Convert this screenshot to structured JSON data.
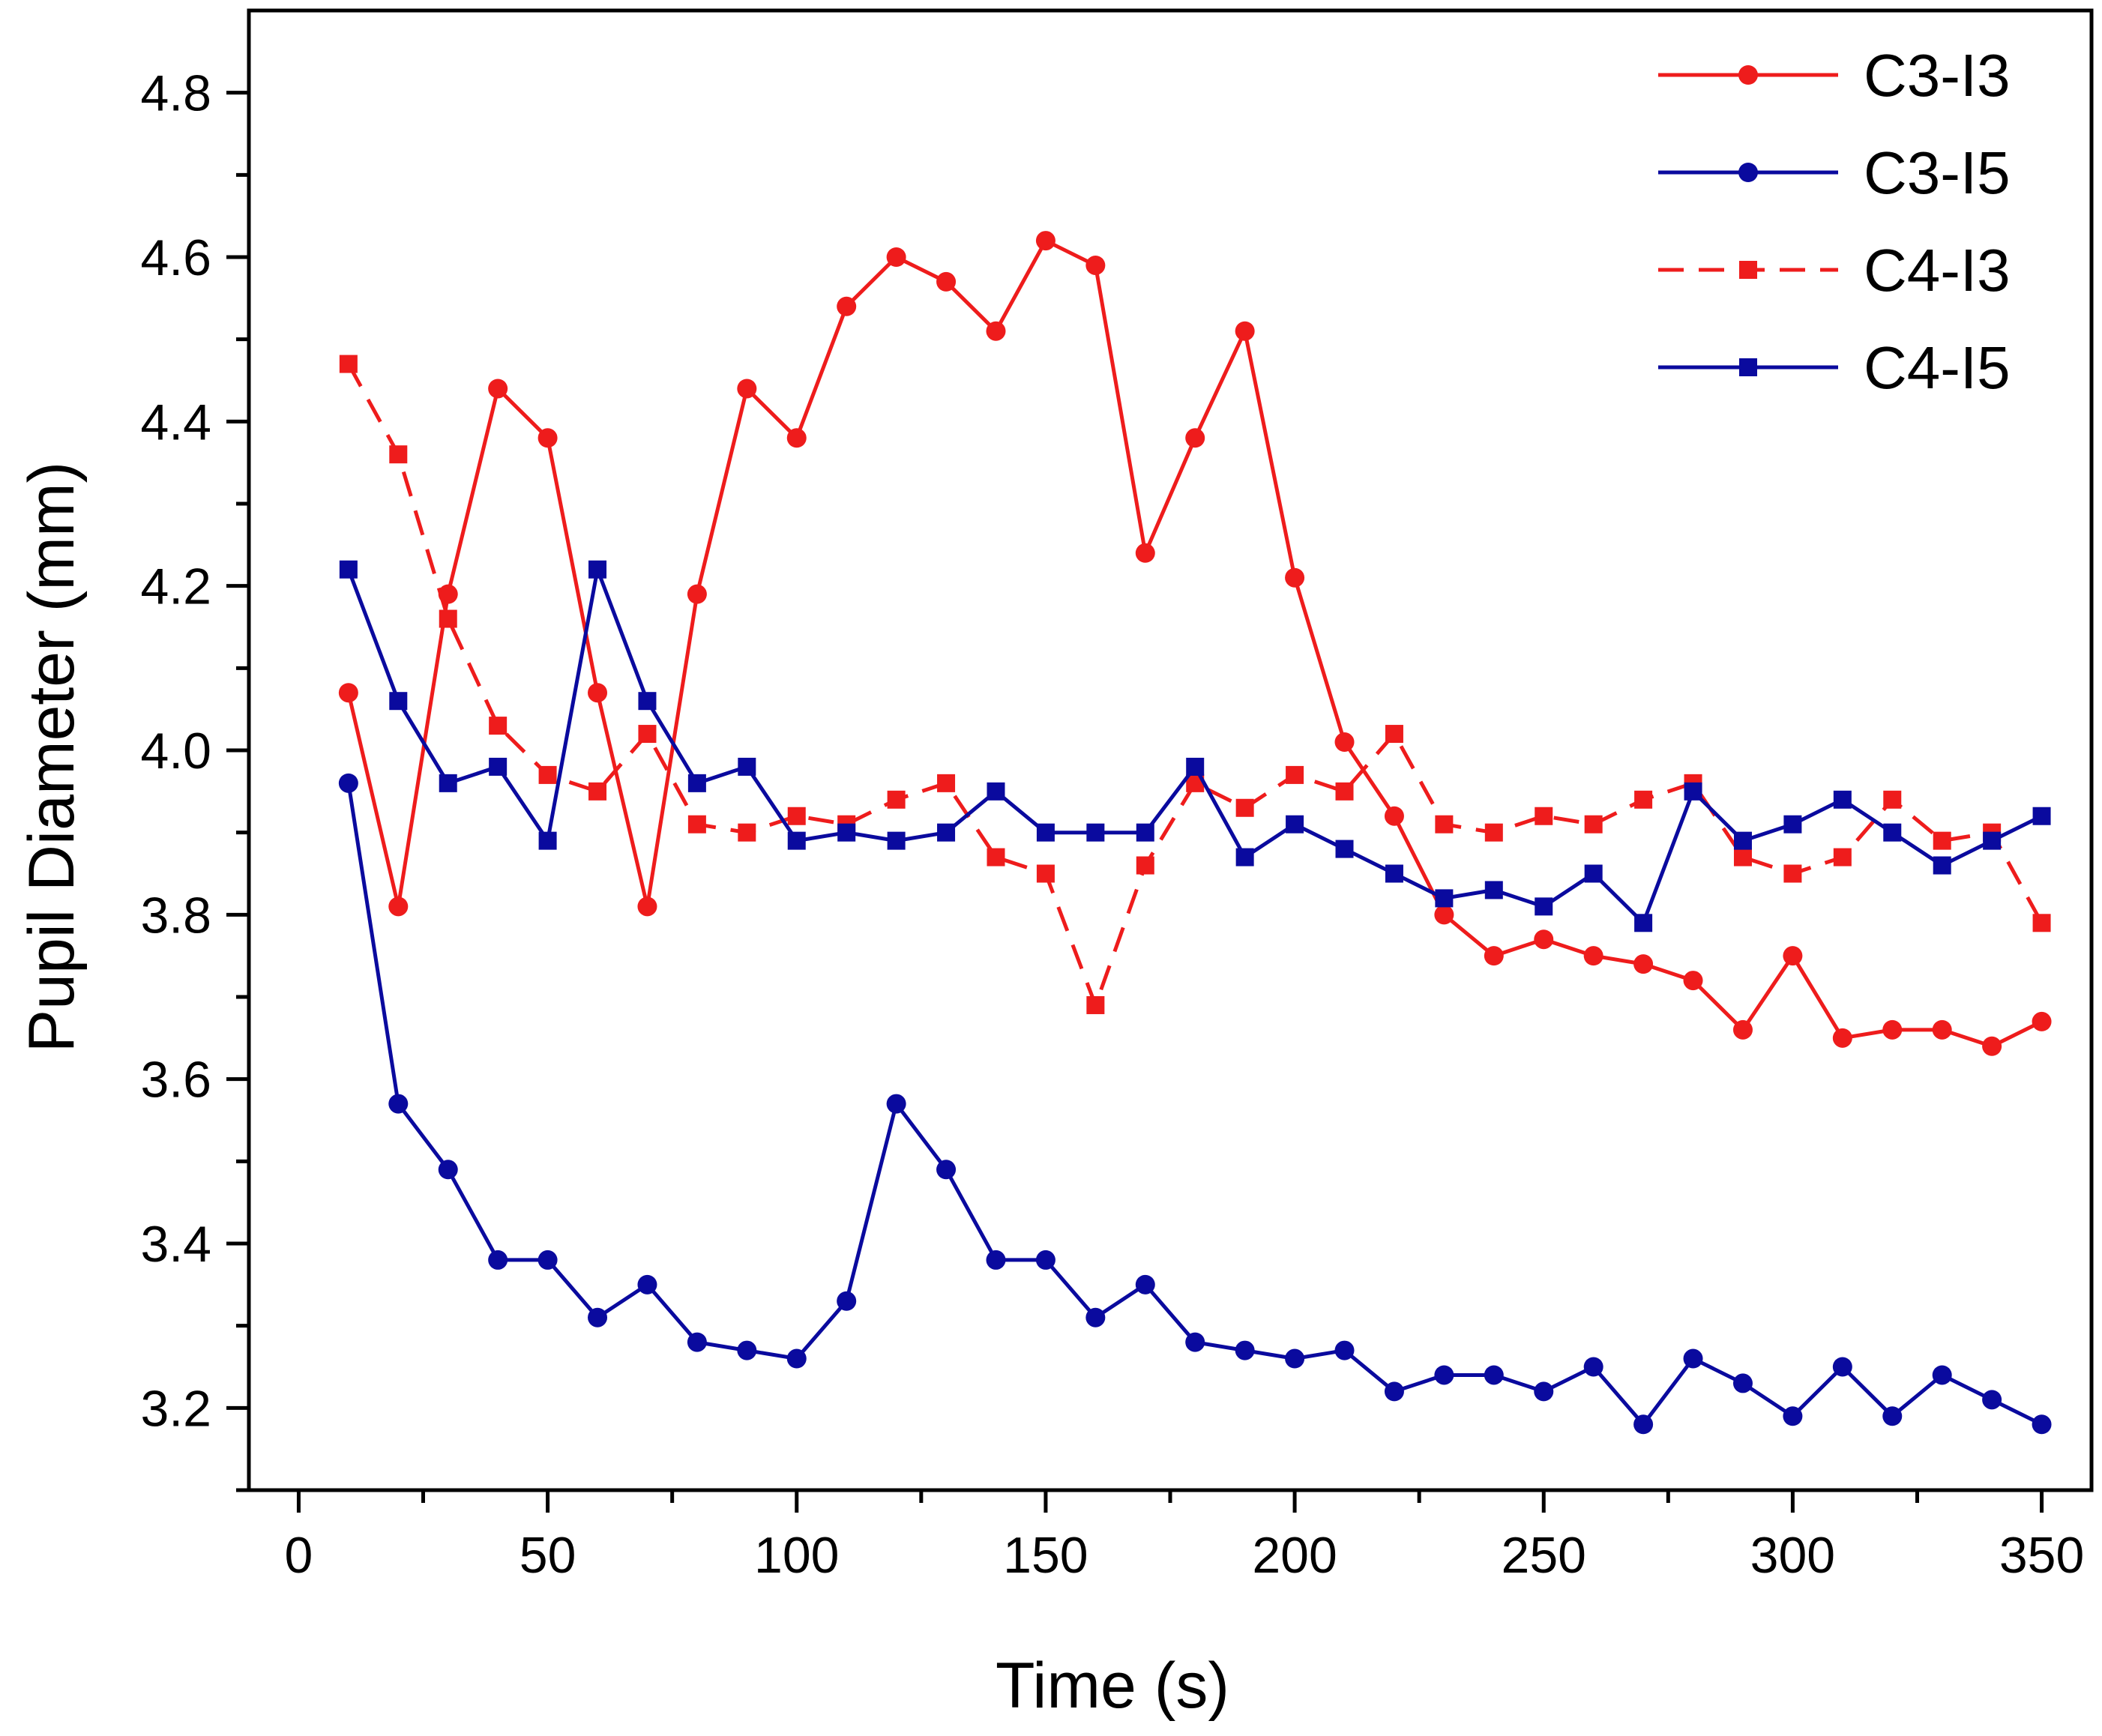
{
  "chart_data": {
    "type": "line",
    "title": "",
    "xlabel": "Time (s)",
    "ylabel": "Pupil Diameter (mm)",
    "xlim": [
      -10,
      360
    ],
    "ylim": [
      3.1,
      4.9
    ],
    "xticks": [
      0,
      50,
      100,
      150,
      200,
      250,
      300,
      350
    ],
    "yticks": [
      3.2,
      3.4,
      3.6,
      3.8,
      4.0,
      4.2,
      4.4,
      4.6,
      4.8
    ],
    "xtick_labels": [
      "0",
      "50",
      "100",
      "150",
      "200",
      "250",
      "300",
      "350"
    ],
    "ytick_labels": [
      "3.2",
      "3.4",
      "3.6",
      "3.8",
      "4.0",
      "4.2",
      "4.4",
      "4.6",
      "4.8"
    ],
    "grid": false,
    "legend": "top-right",
    "x": [
      10,
      20,
      30,
      40,
      50,
      60,
      70,
      80,
      90,
      100,
      110,
      120,
      130,
      140,
      150,
      160,
      170,
      180,
      190,
      200,
      210,
      220,
      230,
      240,
      250,
      260,
      270,
      280,
      290,
      300,
      310,
      320,
      330,
      340,
      350
    ],
    "series": [
      {
        "name": "C3-I3",
        "color": "#ee1c1c",
        "marker": "circle",
        "dash": "solid",
        "values": [
          4.07,
          3.81,
          4.19,
          4.44,
          4.38,
          4.07,
          3.81,
          4.19,
          4.44,
          4.38,
          4.54,
          4.6,
          4.57,
          4.51,
          4.62,
          4.59,
          4.24,
          4.38,
          4.51,
          4.21,
          4.01,
          3.92,
          3.8,
          3.75,
          3.77,
          3.75,
          3.74,
          3.72,
          3.66,
          3.75,
          3.65,
          3.66,
          3.66,
          3.64,
          3.67
        ]
      },
      {
        "name": "C3-I5",
        "color": "#0a0a9e",
        "marker": "circle",
        "dash": "solid",
        "values": [
          3.96,
          3.57,
          3.49,
          3.38,
          3.38,
          3.31,
          3.35,
          3.28,
          3.27,
          3.26,
          3.33,
          3.57,
          3.49,
          3.38,
          3.38,
          3.31,
          3.35,
          3.28,
          3.27,
          3.26,
          3.27,
          3.22,
          3.24,
          3.24,
          3.22,
          3.25,
          3.18,
          3.26,
          3.23,
          3.19,
          3.25,
          3.19,
          3.24,
          3.21,
          3.18
        ]
      },
      {
        "name": "C4-I3",
        "color": "#ee1c1c",
        "marker": "square",
        "dash": "dashed",
        "values": [
          4.47,
          4.36,
          4.16,
          4.03,
          3.97,
          3.95,
          4.02,
          3.91,
          3.9,
          3.92,
          3.91,
          3.94,
          3.96,
          3.87,
          3.85,
          3.69,
          3.86,
          3.96,
          3.93,
          3.97,
          3.95,
          4.02,
          3.91,
          3.9,
          3.92,
          3.91,
          3.94,
          3.96,
          3.87,
          3.85,
          3.87,
          3.94,
          3.89,
          3.9,
          3.79
        ]
      },
      {
        "name": "C4-I5",
        "color": "#0a0a9e",
        "marker": "square",
        "dash": "solid",
        "values": [
          4.22,
          4.06,
          3.96,
          3.98,
          3.89,
          4.22,
          4.06,
          3.96,
          3.98,
          3.89,
          3.9,
          3.89,
          3.9,
          3.95,
          3.9,
          3.9,
          3.9,
          3.98,
          3.87,
          3.91,
          3.88,
          3.85,
          3.82,
          3.83,
          3.81,
          3.85,
          3.79,
          3.95,
          3.89,
          3.91,
          3.94,
          3.9,
          3.86,
          3.89,
          3.92
        ]
      }
    ]
  }
}
